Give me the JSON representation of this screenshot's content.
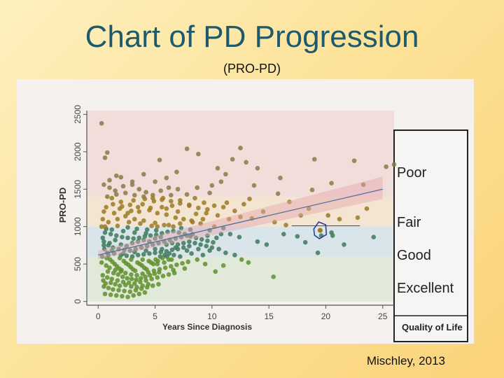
{
  "slide": {
    "title": "Chart of PD Progression",
    "subtitle": "(PRO-PD)",
    "citation": "Mischley, 2013"
  },
  "chart_data": {
    "type": "scatter",
    "title": "",
    "xlabel": "Years Since Diagnosis",
    "ylabel": "PRO-PD",
    "xlim": [
      -1,
      26
    ],
    "ylim": [
      -50,
      2550
    ],
    "x_ticks": [
      0,
      5,
      10,
      15,
      20,
      25
    ],
    "y_ticks": [
      0,
      500,
      1000,
      1500,
      2000,
      2500
    ],
    "grid": false,
    "legend": {
      "title": "Quality of Life",
      "placement": "right",
      "entries": [
        "Poor",
        "Fair",
        "Good",
        "Excellent"
      ]
    },
    "bands": [
      {
        "label": "Excellent",
        "from": 0,
        "to": 600,
        "color": "#dfe9d6"
      },
      {
        "label": "Good",
        "from": 600,
        "to": 1000,
        "color": "#d6e3ea"
      },
      {
        "label": "Fair",
        "from": 1000,
        "to": 1400,
        "color": "#f3e3cd"
      },
      {
        "label": "Poor",
        "from": 1400,
        "to": 2550,
        "color": "#f1dcd8"
      }
    ],
    "trend_line": {
      "x": [
        0,
        25
      ],
      "y": [
        620,
        1500
      ]
    },
    "highlighted_point": {
      "x": 19.5,
      "y": 950
    },
    "highlight_range": {
      "x": [
        17,
        23
      ],
      "y": 1010
    },
    "colors": {
      "excellent": "#5f8f2c",
      "good": "#3d7a5c",
      "fair": "#9a7a28",
      "poor": "#8a7a45",
      "trend": "#4f6fa0"
    },
    "points": [
      [
        0.3,
        2380
      ],
      [
        0.8,
        1990
      ],
      [
        0.6,
        1920
      ],
      [
        0.5,
        1560
      ],
      [
        1.0,
        1520
      ],
      [
        1.5,
        1480
      ],
      [
        2.2,
        1540
      ],
      [
        3.0,
        1560
      ],
      [
        3.6,
        1500
      ],
      [
        4.2,
        1460
      ],
      [
        4.8,
        1420
      ],
      [
        5.5,
        1480
      ],
      [
        6.2,
        1520
      ],
      [
        7.0,
        1500
      ],
      [
        7.8,
        1430
      ],
      [
        8.5,
        1380
      ],
      [
        9.3,
        1320
      ],
      [
        10.2,
        1280
      ],
      [
        11.0,
        1260
      ],
      [
        12.0,
        1210
      ],
      [
        1.2,
        1380
      ],
      [
        2.0,
        1330
      ],
      [
        2.8,
        1290
      ],
      [
        3.5,
        1260
      ],
      [
        4.5,
        1220
      ],
      [
        5.2,
        1180
      ],
      [
        6.0,
        1160
      ],
      [
        6.8,
        1120
      ],
      [
        7.5,
        1100
      ],
      [
        8.3,
        1060
      ],
      [
        9.0,
        1040
      ],
      [
        1.4,
        1180
      ],
      [
        2.4,
        1140
      ],
      [
        3.2,
        1100
      ],
      [
        4.0,
        1080
      ],
      [
        5.0,
        1050
      ],
      [
        5.8,
        1020
      ],
      [
        6.6,
        1000
      ],
      [
        7.3,
        980
      ],
      [
        8.1,
        960
      ],
      [
        0.4,
        1100
      ],
      [
        0.9,
        1060
      ],
      [
        1.7,
        1010
      ],
      [
        2.6,
        990
      ],
      [
        3.4,
        970
      ],
      [
        4.3,
        960
      ],
      [
        5.1,
        950
      ],
      [
        0.7,
        1260
      ],
      [
        1.9,
        1240
      ],
      [
        2.9,
        1210
      ],
      [
        3.9,
        1300
      ],
      [
        4.9,
        1340
      ],
      [
        5.7,
        1380
      ],
      [
        6.4,
        1420
      ],
      [
        7.2,
        1350
      ],
      [
        8.0,
        1290
      ],
      [
        9.5,
        1180
      ],
      [
        10.5,
        1150
      ],
      [
        11.5,
        1100
      ],
      [
        12.5,
        1130
      ],
      [
        13.5,
        1110
      ],
      [
        14.5,
        1200
      ],
      [
        15.5,
        1060
      ],
      [
        16.5,
        1020
      ],
      [
        9.8,
        1450
      ],
      [
        10.8,
        1600
      ],
      [
        11.3,
        1320
      ],
      [
        12.8,
        1300
      ],
      [
        13.3,
        1370
      ],
      [
        15.8,
        1440
      ],
      [
        16.8,
        1330
      ],
      [
        17.8,
        1150
      ],
      [
        18.5,
        1240
      ],
      [
        20.2,
        1150
      ],
      [
        21.2,
        1100
      ],
      [
        22.8,
        1120
      ],
      [
        23.6,
        1240
      ],
      [
        5.4,
        1890
      ],
      [
        6.9,
        1730
      ],
      [
        7.8,
        2040
      ],
      [
        8.8,
        1970
      ],
      [
        10.5,
        1780
      ],
      [
        11.2,
        1700
      ],
      [
        11.8,
        1900
      ],
      [
        12.5,
        2050
      ],
      [
        13.0,
        1860
      ],
      [
        10.0,
        1550
      ],
      [
        6.0,
        1650
      ],
      [
        4.0,
        1700
      ],
      [
        1.6,
        1680
      ],
      [
        14.0,
        1780
      ],
      [
        16.0,
        1650
      ],
      [
        19.0,
        1900
      ],
      [
        20.5,
        1580
      ],
      [
        22.5,
        1880
      ],
      [
        23.3,
        1560
      ],
      [
        25.3,
        1800
      ],
      [
        26.0,
        1830
      ],
      [
        13.7,
        1550
      ],
      [
        8.7,
        1520
      ],
      [
        18.8,
        1490
      ],
      [
        19.6,
        880
      ],
      [
        20.5,
        920
      ],
      [
        0.5,
        800
      ],
      [
        0.9,
        750
      ],
      [
        1.3,
        720
      ],
      [
        1.8,
        700
      ],
      [
        2.3,
        690
      ],
      [
        2.8,
        680
      ],
      [
        3.3,
        700
      ],
      [
        3.8,
        720
      ],
      [
        4.3,
        740
      ],
      [
        4.8,
        760
      ],
      [
        5.3,
        780
      ],
      [
        5.8,
        800
      ],
      [
        6.3,
        820
      ],
      [
        6.8,
        840
      ],
      [
        7.3,
        860
      ],
      [
        7.8,
        880
      ],
      [
        8.3,
        900
      ],
      [
        0.6,
        920
      ],
      [
        1.1,
        900
      ],
      [
        1.6,
        880
      ],
      [
        2.1,
        860
      ],
      [
        2.6,
        850
      ],
      [
        3.1,
        840
      ],
      [
        3.6,
        850
      ],
      [
        4.1,
        870
      ],
      [
        4.6,
        880
      ],
      [
        5.1,
        890
      ],
      [
        5.6,
        910
      ],
      [
        6.1,
        930
      ],
      [
        6.6,
        940
      ],
      [
        7.1,
        920
      ],
      [
        7.6,
        900
      ],
      [
        8.1,
        870
      ],
      [
        8.6,
        850
      ],
      [
        9.1,
        830
      ],
      [
        9.6,
        810
      ],
      [
        10.1,
        790
      ],
      [
        0.8,
        650
      ],
      [
        1.4,
        640
      ],
      [
        2.0,
        620
      ],
      [
        2.5,
        610
      ],
      [
        3.0,
        600
      ],
      [
        3.5,
        620
      ],
      [
        4.0,
        630
      ],
      [
        4.5,
        640
      ],
      [
        5.0,
        650
      ],
      [
        5.5,
        660
      ],
      [
        6.0,
        670
      ],
      [
        6.5,
        690
      ],
      [
        7.0,
        700
      ],
      [
        7.5,
        720
      ],
      [
        8.0,
        740
      ],
      [
        10.6,
        700
      ],
      [
        11.2,
        650
      ],
      [
        12.0,
        620
      ],
      [
        12.6,
        560
      ],
      [
        13.2,
        520
      ],
      [
        11.6,
        900
      ],
      [
        12.4,
        860
      ],
      [
        14.0,
        800
      ],
      [
        14.8,
        760
      ],
      [
        16.3,
        900
      ],
      [
        17.5,
        870
      ],
      [
        18.2,
        790
      ],
      [
        19.3,
        650
      ],
      [
        20.6,
        880
      ],
      [
        21.6,
        760
      ],
      [
        24.2,
        860
      ],
      [
        15.4,
        330
      ],
      [
        10.3,
        400
      ],
      [
        11.0,
        480
      ],
      [
        9.4,
        500
      ],
      [
        8.7,
        560
      ],
      [
        0.3,
        520
      ],
      [
        0.7,
        480
      ],
      [
        1.0,
        450
      ],
      [
        1.5,
        420
      ],
      [
        2.0,
        400
      ],
      [
        2.4,
        380
      ],
      [
        2.9,
        360
      ],
      [
        3.4,
        350
      ],
      [
        3.9,
        370
      ],
      [
        4.4,
        390
      ],
      [
        4.9,
        410
      ],
      [
        5.4,
        430
      ],
      [
        5.9,
        450
      ],
      [
        6.4,
        470
      ],
      [
        6.9,
        490
      ],
      [
        7.4,
        510
      ],
      [
        7.9,
        530
      ],
      [
        0.4,
        350
      ],
      [
        0.8,
        320
      ],
      [
        1.2,
        300
      ],
      [
        1.7,
        280
      ],
      [
        2.2,
        260
      ],
      [
        2.7,
        250
      ],
      [
        3.2,
        240
      ],
      [
        3.7,
        260
      ],
      [
        4.2,
        280
      ],
      [
        4.7,
        300
      ],
      [
        5.2,
        320
      ],
      [
        5.7,
        340
      ],
      [
        6.2,
        360
      ],
      [
        6.7,
        380
      ],
      [
        0.5,
        200
      ],
      [
        0.9,
        180
      ],
      [
        1.3,
        160
      ],
      [
        1.8,
        150
      ],
      [
        2.3,
        140
      ],
      [
        2.8,
        130
      ],
      [
        3.3,
        150
      ],
      [
        3.8,
        170
      ],
      [
        4.3,
        190
      ],
      [
        4.8,
        210
      ],
      [
        5.3,
        230
      ],
      [
        0.6,
        100
      ],
      [
        1.1,
        90
      ],
      [
        1.6,
        80
      ],
      [
        2.1,
        70
      ],
      [
        2.6,
        60
      ],
      [
        3.1,
        80
      ],
      [
        3.6,
        100
      ],
      [
        4.1,
        120
      ],
      [
        0.35,
        600
      ],
      [
        0.55,
        700
      ],
      [
        0.75,
        580
      ],
      [
        1.05,
        560
      ],
      [
        1.25,
        530
      ],
      [
        1.45,
        500
      ],
      [
        1.65,
        470
      ],
      [
        1.85,
        440
      ],
      [
        2.05,
        420
      ],
      [
        2.25,
        540
      ],
      [
        2.45,
        510
      ],
      [
        2.65,
        490
      ],
      [
        2.85,
        460
      ],
      [
        3.05,
        430
      ],
      [
        3.25,
        410
      ],
      [
        3.45,
        520
      ],
      [
        3.65,
        500
      ],
      [
        3.85,
        480
      ],
      [
        4.05,
        450
      ],
      [
        4.25,
        430
      ],
      [
        4.45,
        540
      ],
      [
        4.65,
        520
      ],
      [
        4.85,
        500
      ],
      [
        5.05,
        560
      ],
      [
        5.25,
        540
      ],
      [
        5.45,
        600
      ],
      [
        5.65,
        580
      ],
      [
        5.85,
        620
      ],
      [
        6.05,
        600
      ],
      [
        6.25,
        640
      ],
      [
        6.45,
        560
      ],
      [
        6.65,
        620
      ],
      [
        1.1,
        250
      ],
      [
        1.5,
        230
      ],
      [
        1.9,
        210
      ],
      [
        2.4,
        220
      ],
      [
        2.9,
        200
      ],
      [
        3.4,
        190
      ],
      [
        3.9,
        210
      ],
      [
        4.4,
        230
      ],
      [
        0.45,
        280
      ],
      [
        0.65,
        240
      ],
      [
        0.85,
        400
      ],
      [
        1.35,
        380
      ],
      [
        1.75,
        360
      ],
      [
        2.15,
        330
      ],
      [
        2.55,
        310
      ],
      [
        2.95,
        300
      ],
      [
        3.35,
        290
      ],
      [
        3.75,
        310
      ],
      [
        4.15,
        330
      ],
      [
        4.55,
        350
      ],
      [
        4.95,
        370
      ],
      [
        5.35,
        390
      ],
      [
        0.5,
        750
      ],
      [
        1.0,
        780
      ],
      [
        1.5,
        820
      ],
      [
        2.0,
        760
      ],
      [
        2.5,
        740
      ],
      [
        3.0,
        780
      ],
      [
        3.5,
        800
      ],
      [
        4.0,
        820
      ],
      [
        4.5,
        800
      ],
      [
        5.0,
        840
      ],
      [
        5.5,
        860
      ],
      [
        6.0,
        760
      ],
      [
        6.5,
        780
      ],
      [
        7.0,
        760
      ],
      [
        7.5,
        780
      ],
      [
        8.0,
        800
      ],
      [
        8.5,
        780
      ],
      [
        9.0,
        760
      ],
      [
        9.5,
        740
      ],
      [
        10.0,
        720
      ],
      [
        8.2,
        640
      ],
      [
        9.2,
        620
      ],
      [
        7.2,
        600
      ],
      [
        6.2,
        560
      ],
      [
        5.2,
        500
      ],
      [
        7.6,
        440
      ],
      [
        6.6,
        420
      ],
      [
        5.8,
        520
      ],
      [
        3.9,
        560
      ],
      [
        2.9,
        560
      ],
      [
        1.9,
        580
      ],
      [
        0.9,
        620
      ],
      [
        1.2,
        960
      ],
      [
        2.2,
        940
      ],
      [
        3.2,
        920
      ],
      [
        4.2,
        910
      ],
      [
        5.2,
        1000
      ],
      [
        6.2,
        1020
      ],
      [
        7.2,
        1040
      ],
      [
        8.2,
        1080
      ],
      [
        9.2,
        1100
      ],
      [
        10.2,
        1000
      ],
      [
        11.0,
        980
      ],
      [
        0.4,
        850
      ],
      [
        0.7,
        970
      ],
      [
        0.6,
        1000
      ],
      [
        1.7,
        1100
      ],
      [
        2.7,
        1060
      ],
      [
        3.7,
        1040
      ],
      [
        4.7,
        1010
      ],
      [
        9.8,
        950
      ],
      [
        10.8,
        900
      ],
      [
        10.4,
        850
      ],
      [
        9.6,
        880
      ],
      [
        5.6,
        700
      ],
      [
        6.8,
        720
      ],
      [
        7.8,
        680
      ],
      [
        8.8,
        700
      ],
      [
        9.8,
        680
      ],
      [
        3.2,
        660
      ],
      [
        2.2,
        640
      ],
      [
        1.2,
        680
      ],
      [
        4.2,
        680
      ],
      [
        5.0,
        700
      ],
      [
        0.8,
        1400
      ],
      [
        1.6,
        1430
      ],
      [
        2.4,
        1450
      ],
      [
        3.2,
        1420
      ],
      [
        4.0,
        1400
      ],
      [
        4.8,
        1380
      ],
      [
        5.6,
        1360
      ],
      [
        6.4,
        1340
      ],
      [
        7.2,
        1310
      ],
      [
        8.0,
        1280
      ],
      [
        8.8,
        1250
      ],
      [
        9.6,
        1230
      ],
      [
        1.0,
        1620
      ],
      [
        2.0,
        1660
      ],
      [
        3.0,
        1600
      ],
      [
        5.0,
        1600
      ],
      [
        6.5,
        1280
      ],
      [
        7.0,
        1200
      ],
      [
        6.0,
        1240
      ],
      [
        8.6,
        1170
      ],
      [
        2.6,
        1180
      ],
      [
        3.6,
        1200
      ],
      [
        4.6,
        1250
      ],
      [
        5.6,
        1260
      ],
      [
        1.3,
        1300
      ],
      [
        2.1,
        1270
      ],
      [
        3.1,
        1350
      ],
      [
        4.1,
        1370
      ],
      [
        0.5,
        1200
      ],
      [
        0.3,
        1000
      ]
    ]
  }
}
